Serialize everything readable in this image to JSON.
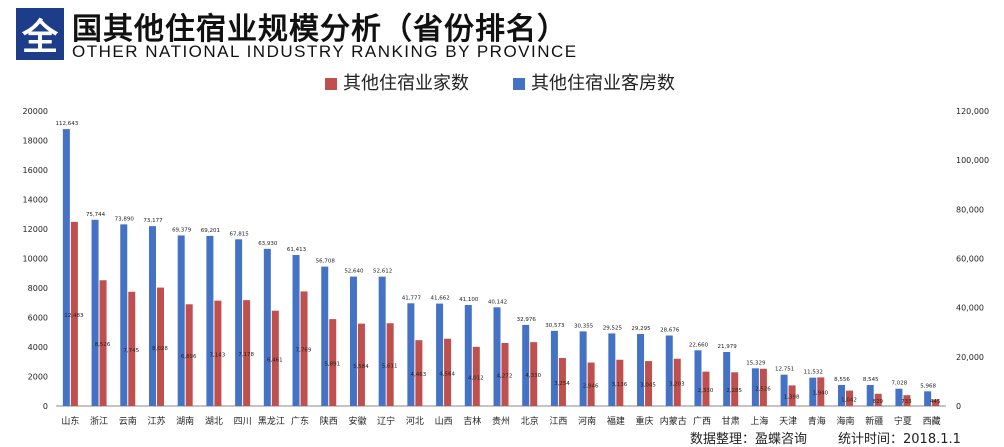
{
  "header": {
    "logo_char": "全",
    "title": "国其他住宿业规模分析（省份排名）",
    "subtitle": "OTHER NATIONAL INDUSTRY RANKING BY PROVINCE"
  },
  "footer": {
    "source": "数据整理：盈蝶咨询",
    "date": "统计时间：2018.1.1"
  },
  "colors": {
    "establishments": "#c0504d",
    "rooms": "#4472c4"
  },
  "chart_data": {
    "type": "bar",
    "categories": [
      "山东",
      "浙江",
      "云南",
      "江苏",
      "湖南",
      "湖北",
      "四川",
      "黑龙江",
      "广东",
      "陕西",
      "安徽",
      "辽宁",
      "河北",
      "山西",
      "吉林",
      "贵州",
      "北京",
      "江西",
      "河南",
      "福建",
      "重庆",
      "内蒙古",
      "广西",
      "甘肃",
      "上海",
      "天津",
      "青海",
      "海南",
      "新疆",
      "宁夏",
      "西藏"
    ],
    "series": [
      {
        "name": "其他住宿业家数",
        "axis": "left",
        "values": [
          12483,
          8526,
          7745,
          8028,
          6896,
          7143,
          7178,
          6461,
          7769,
          5891,
          5584,
          5611,
          4463,
          4564,
          4012,
          4272,
          4330,
          3254,
          2946,
          3136,
          3045,
          3203,
          2330,
          2285,
          2526,
          1398,
          1940,
          1042,
          829,
          733,
          445
        ],
        "labels": [
          "12,483",
          "8,526",
          "7,745",
          "8,028",
          "6,896",
          "7,143",
          "7,178",
          "6,461",
          "7,769",
          "5,891",
          "5,584",
          "5,611",
          "4,463",
          "4,564",
          "4,012",
          "4,272",
          "4,330",
          "3,254",
          "2,946",
          "3,136",
          "3,045",
          "3,203",
          "2,330",
          "2,285",
          "2,526",
          "1,398",
          "1,940",
          "1,042",
          "829",
          "733",
          "445"
        ]
      },
      {
        "name": "其他住宿业客房数",
        "axis": "right",
        "values": [
          112643,
          75744,
          73890,
          73177,
          69379,
          69201,
          67815,
          63930,
          61413,
          56708,
          52640,
          52612,
          41777,
          41662,
          41100,
          40142,
          32976,
          30573,
          30355,
          29525,
          29295,
          28676,
          22660,
          21979,
          15329,
          12751,
          11532,
          8556,
          8545,
          7028,
          5968
        ],
        "labels": [
          "112,643",
          "75,744",
          "73,890",
          "73,177",
          "69,379",
          "69,201",
          "67,815",
          "63,930",
          "61,413",
          "56,708",
          "52,640",
          "52,612",
          "41,777",
          "41,662",
          "41,100",
          "40,142",
          "32,976",
          "30,573",
          "30,355",
          "29,525",
          "29,295",
          "28,676",
          "22,660",
          "21,979",
          "15,329",
          "12,751",
          "11,532",
          "8,556",
          "8,545",
          "7,028",
          "5,968"
        ]
      }
    ],
    "y_left": {
      "range": [
        0,
        20000
      ],
      "ticks": [
        "0",
        "2000",
        "4000",
        "6000",
        "8000",
        "10000",
        "12000",
        "14000",
        "16000",
        "18000",
        "20000"
      ]
    },
    "y_right": {
      "range": [
        0,
        120000
      ],
      "ticks": [
        "0",
        "20,000",
        "40,000",
        "60,000",
        "80,000",
        "100,000",
        "120,000"
      ]
    },
    "grid": false,
    "legend_position": "top-center"
  }
}
